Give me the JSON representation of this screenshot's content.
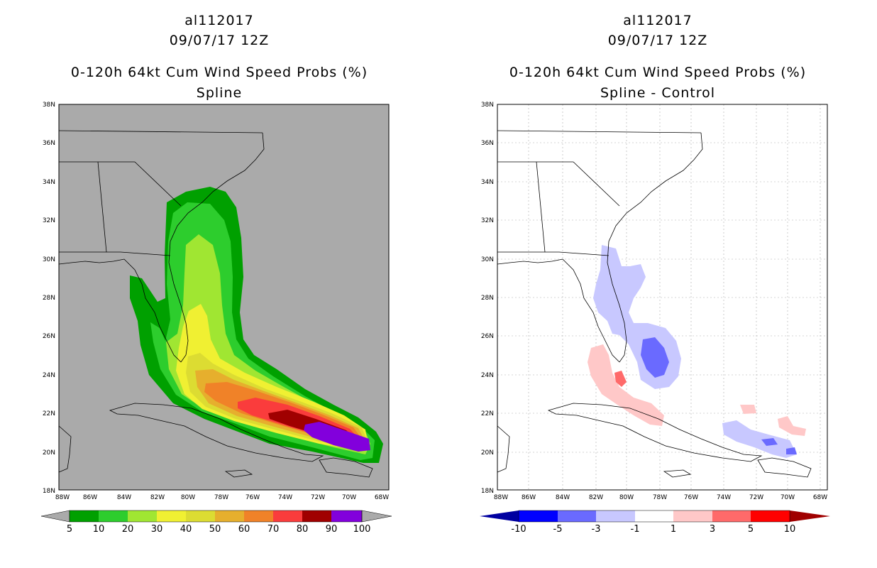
{
  "left": {
    "title_line1": "al112017",
    "title_line2": "09/07/17 12Z",
    "title_line3": "0-120h 64kt Cum Wind Speed Probs (%)",
    "title_line4": "Spline",
    "colorbar_labels": [
      "5",
      "10",
      "20",
      "30",
      "40",
      "50",
      "60",
      "70",
      "80",
      "90",
      "100"
    ],
    "colors": {
      "background": "#aaaaaa",
      "c5": "#00a000",
      "c10": "#2dcd2d",
      "c20": "#a0e632",
      "c30": "#f0f032",
      "c40": "#dcdc32",
      "c50": "#e6af2d",
      "c60": "#f08228",
      "c70": "#fa3c3c",
      "c80": "#a00000",
      "c90": "#8200dc"
    }
  },
  "right": {
    "title_line1": "al112017",
    "title_line2": "09/07/17 12Z",
    "title_line3": "0-120h 64kt Cum Wind Speed Probs (%)",
    "title_line4": "Spline - Control",
    "colorbar_labels": [
      "-10",
      "-5",
      "-3",
      "-1",
      "1",
      "3",
      "5",
      "10"
    ],
    "colors": {
      "neg10": "#0000a0",
      "neg5": "#0000ff",
      "neg3": "#6a6aff",
      "neg1": "#c8c8ff",
      "zero": "#ffffff",
      "pos1": "#ffc8c8",
      "pos3": "#ff6a6a",
      "pos5": "#ff0000",
      "pos10": "#a00000"
    }
  },
  "axes": {
    "lat_labels": [
      "38N",
      "36N",
      "34N",
      "32N",
      "30N",
      "28N",
      "26N",
      "24N",
      "22N",
      "20N",
      "18N"
    ],
    "lon_labels": [
      "88W",
      "86W",
      "84W",
      "82W",
      "80W",
      "78W",
      "76W",
      "74W",
      "72W",
      "70W",
      "68W"
    ]
  }
}
